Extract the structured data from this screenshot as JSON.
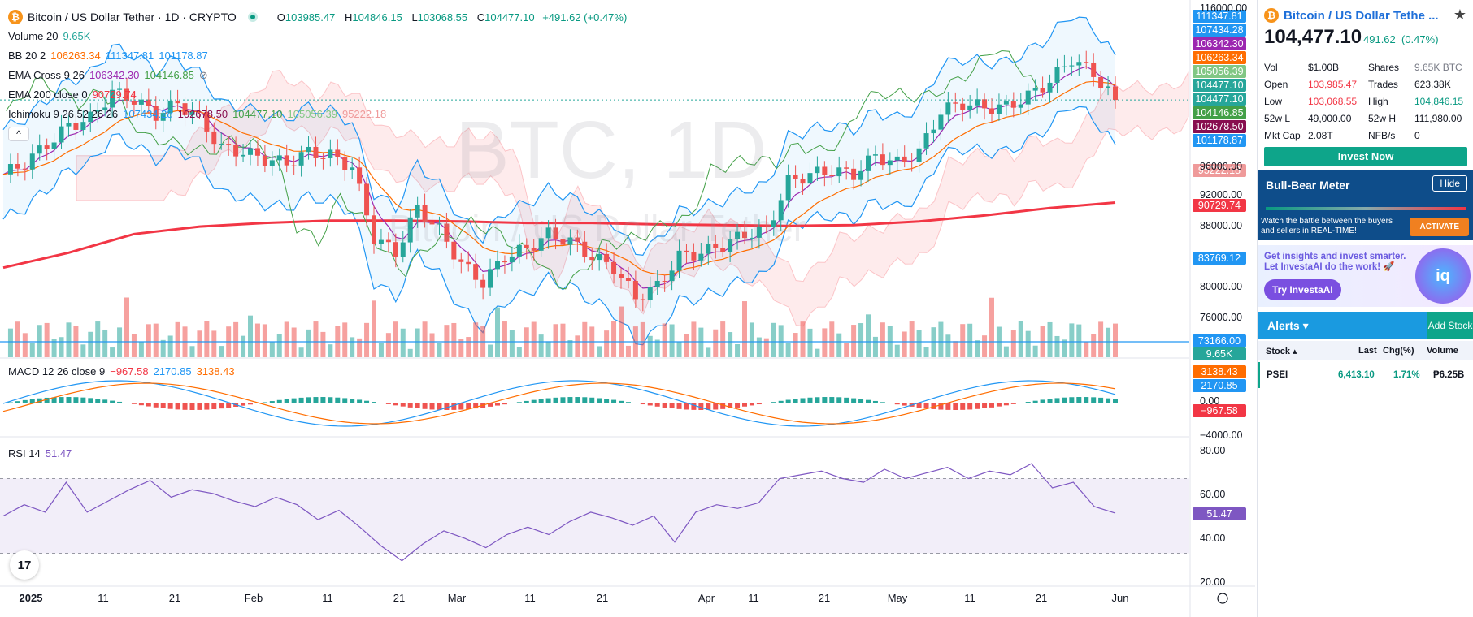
{
  "header": {
    "symbol_badge": "₿",
    "title": "Bitcoin / US Dollar Tether · 1D · CRYPTO",
    "o_label": "O",
    "o_value": "103985.47",
    "h_label": "H",
    "h_value": "104846.15",
    "l_label": "L",
    "l_value": "103068.55",
    "c_label": "C",
    "c_value": "104477.10",
    "change": "+491.62 (+0.47%)"
  },
  "indicators": {
    "volume": {
      "name": "Volume 20",
      "v1": "9.65K"
    },
    "bb": {
      "name": "BB 20 2",
      "v1": "106263.34",
      "v2": "111347.81",
      "v3": "101178.87"
    },
    "ema_cross": {
      "name": "EMA Cross 9 26",
      "v1": "106342.30",
      "v2": "104146.85",
      "icon": "⊘"
    },
    "ema200": {
      "name": "EMA 200 close 0",
      "v1": "90729.74"
    },
    "ichimoku": {
      "name": "Ichimoku 9 26 52 26 26",
      "v1": "107434.28",
      "v2": "102678.50",
      "v3": "104477.10",
      "v4": "105056.39",
      "v5": "95222.18"
    },
    "macd": {
      "name": "MACD 12 26 close 9",
      "v1": "−967.58",
      "v2": "2170.85",
      "v3": "3138.43"
    },
    "rsi": {
      "name": "RSI 14",
      "v1": "51.47"
    }
  },
  "collapse_label": "^",
  "watermark": {
    "big": "BTC, 1D",
    "small": "Bitcoin / US Dollar Tether"
  },
  "tv_logo": "17",
  "price_axis": [
    "116000.00",
    "96000.00",
    "92000.00",
    "88000.00",
    "80000.00",
    "76000.00"
  ],
  "price_tags": [
    {
      "text": "111347.81",
      "color": "#2196f3"
    },
    {
      "text": "107434.28",
      "color": "#2196f3"
    },
    {
      "text": "106342.30",
      "color": "#9c27b0"
    },
    {
      "text": "106263.34",
      "color": "#ff6d00"
    },
    {
      "text": "105056.39",
      "color": "#81c784"
    },
    {
      "text": "104477.10",
      "color": "#26a69a"
    },
    {
      "text": "104477.10",
      "color": "#26a69a"
    },
    {
      "text": "104146.85",
      "color": "#43a047"
    },
    {
      "text": "102678.50",
      "color": "#880e4f"
    },
    {
      "text": "101178.87",
      "color": "#2196f3"
    },
    {
      "text": "95222.18",
      "color": "#ef9a9a"
    },
    {
      "text": "90729.74",
      "color": "#f23645"
    },
    {
      "text": "83769.12",
      "color": "#2196f3"
    },
    {
      "text": "73166.00",
      "color": "#2196f3"
    },
    {
      "text": "9.65K",
      "color": "#26a69a"
    }
  ],
  "macd_axis": [
    "0.00",
    "−4000.00"
  ],
  "macd_tags": [
    {
      "text": "3138.43",
      "color": "#ff6d00"
    },
    {
      "text": "2170.85",
      "color": "#2196f3"
    },
    {
      "text": "−967.58",
      "color": "#f23645"
    }
  ],
  "rsi_axis": [
    "80.00",
    "60.00",
    "40.00",
    "20.00"
  ],
  "rsi_tag": {
    "text": "51.47",
    "color": "#7e57c2"
  },
  "time_axis": [
    "2025",
    "11",
    "21",
    "Feb",
    "11",
    "21",
    "Mar",
    "11",
    "21",
    "Apr",
    "11",
    "21",
    "May",
    "11",
    "21",
    "Jun"
  ],
  "chart_data": {
    "type": "candlestick",
    "title": "Bitcoin / US Dollar Tether · 1D · CRYPTO",
    "x_axis": [
      "2025",
      "11",
      "21",
      "Feb",
      "11",
      "21",
      "Mar",
      "11",
      "21",
      "Apr",
      "11",
      "21",
      "May",
      "11",
      "21",
      "Jun"
    ],
    "ylim": [
      70000,
      117000
    ],
    "close_path": [
      94500,
      96000,
      98500,
      101000,
      102000,
      105500,
      104500,
      102500,
      104000,
      102000,
      98000,
      97500,
      96500,
      96000,
      97500,
      97000,
      95500,
      86000,
      84000,
      90000,
      87000,
      82500,
      80000,
      83500,
      84500,
      86500,
      85500,
      83500,
      82000,
      78000,
      79500,
      83500,
      84000,
      85000,
      86500,
      87000,
      93500,
      94500,
      95000,
      94500,
      97000,
      96000,
      97500,
      103000,
      104000,
      103500,
      103500,
      105000,
      107000,
      110000,
      108000,
      104477.1
    ],
    "ema200_path": [
      82000,
      84000,
      86500,
      87500,
      88000,
      88300,
      88300,
      88200,
      88000,
      88000,
      87800,
      87700,
      87600,
      87700,
      88200,
      89000,
      90000,
      90729.74
    ],
    "volume_last": "9.65K",
    "volume_ma_level": 73166,
    "macd": {
      "macd": 2170.85,
      "signal": 3138.43,
      "histogram": -967.58
    },
    "rsi": {
      "value": 51.47,
      "path": [
        50,
        56,
        52,
        68,
        52,
        58,
        64,
        69,
        60,
        64,
        62,
        58,
        55,
        60,
        56,
        48,
        53,
        44,
        34,
        26,
        35,
        42,
        38,
        33,
        40,
        44,
        40,
        47,
        52,
        49,
        45,
        50,
        36,
        52,
        56,
        54,
        57,
        70,
        72,
        74,
        70,
        68,
        75,
        70,
        73,
        76,
        70,
        74,
        72,
        78,
        65,
        68,
        55,
        51.47
      ],
      "levels": [
        70,
        50,
        30
      ]
    }
  },
  "sidebar": {
    "title": "Bitcoin / US Dollar Tethe ...",
    "price": "104,477.10",
    "change": "491.62",
    "change_pct": "(0.47%)",
    "stats": [
      {
        "l1": "Vol",
        "v1": "$1.00B",
        "l2": "Shares",
        "v2": "9.65K BTC",
        "c1": "#131722",
        "c2": "#787b86"
      },
      {
        "l1": "Open",
        "v1": "103,985.47",
        "l2": "Trades",
        "v2": "623.38K",
        "c1": "#f23645",
        "c2": "#131722"
      },
      {
        "l1": "Low",
        "v1": "103,068.55",
        "l2": "High",
        "v2": "104,846.15",
        "c1": "#f23645",
        "c2": "#089981"
      },
      {
        "l1": "52w L",
        "v1": "49,000.00",
        "l2": "52w H",
        "v2": "111,980.00",
        "c1": "#131722",
        "c2": "#131722"
      },
      {
        "l1": "Mkt Cap",
        "v1": "2.08T",
        "l2": "NFB/s",
        "v2": "0",
        "c1": "#131722",
        "c2": "#131722"
      }
    ],
    "invest_btn": "Invest Now",
    "bull_bear": {
      "title": "Bull-Bear Meter",
      "hide": "Hide",
      "text": "Watch the battle between the buyers and sellers in REAL-TIME!",
      "activate": "ACTIVATE"
    },
    "promo": {
      "text": "Get insights and invest smarter. Let InvestaAI do the work! 🚀",
      "button": "Try InvestaAI",
      "logo": "iq"
    },
    "alerts": {
      "title": "Alerts ▾",
      "add": "Add Stock"
    },
    "table_head": {
      "stock": "Stock ▴",
      "last": "Last",
      "chg": "Chg(%)",
      "vol": "Volume"
    },
    "table_rows": [
      {
        "stock": "PSEI",
        "last": "6,413.10",
        "chg": "1.71%",
        "vol": "₱6.25B"
      }
    ]
  }
}
